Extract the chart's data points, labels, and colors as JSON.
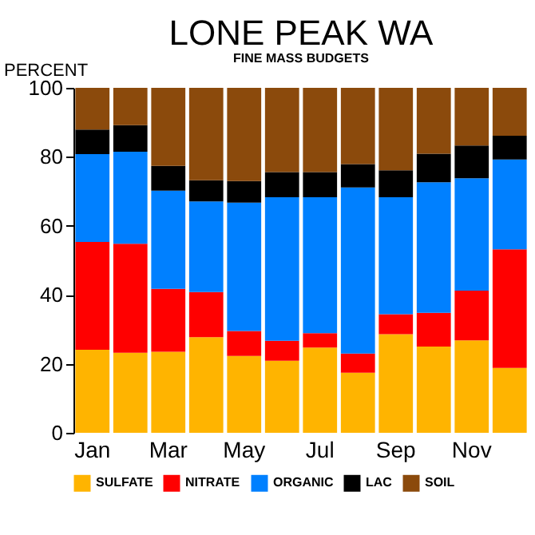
{
  "chart_data": {
    "type": "bar",
    "title": "LONE PEAK WA",
    "subtitle": "FINE MASS BUDGETS",
    "ylabel": "PERCENT",
    "categories": [
      "Jan",
      null,
      "Mar",
      null,
      "May",
      null,
      "Jul",
      null,
      "Sep",
      null,
      "Nov",
      null
    ],
    "stacked": true,
    "ylim": [
      0,
      100
    ],
    "yticks": [
      0,
      20,
      40,
      60,
      80,
      100
    ],
    "grid": false,
    "legend": "bottom",
    "series": [
      {
        "name": "SULFATE",
        "color": "#ffb400",
        "values": [
          24.1,
          23.2,
          23.5,
          27.7,
          22.3,
          20.9,
          24.7,
          17.4,
          28.6,
          25.0,
          26.8,
          18.8
        ]
      },
      {
        "name": "NITRATE",
        "color": "#ff0000",
        "values": [
          31.2,
          31.6,
          18.2,
          13.1,
          7.2,
          5.8,
          4.2,
          5.6,
          5.8,
          9.8,
          14.4,
          34.4
        ]
      },
      {
        "name": "ORGANIC",
        "color": "#0080ff",
        "values": [
          25.5,
          26.7,
          28.5,
          26.3,
          37.2,
          41.6,
          39.4,
          48.1,
          33.9,
          37.8,
          32.6,
          26.0
        ]
      },
      {
        "name": "LAC",
        "color": "#000000",
        "values": [
          7.1,
          7.7,
          7.2,
          6.1,
          6.3,
          7.3,
          7.3,
          6.8,
          7.8,
          8.3,
          9.5,
          6.9
        ]
      },
      {
        "name": "SOIL",
        "color": "#8b4a0c",
        "values": [
          12.1,
          10.8,
          22.6,
          26.8,
          27.0,
          24.4,
          24.4,
          22.1,
          23.9,
          19.1,
          16.7,
          13.9
        ]
      }
    ]
  }
}
